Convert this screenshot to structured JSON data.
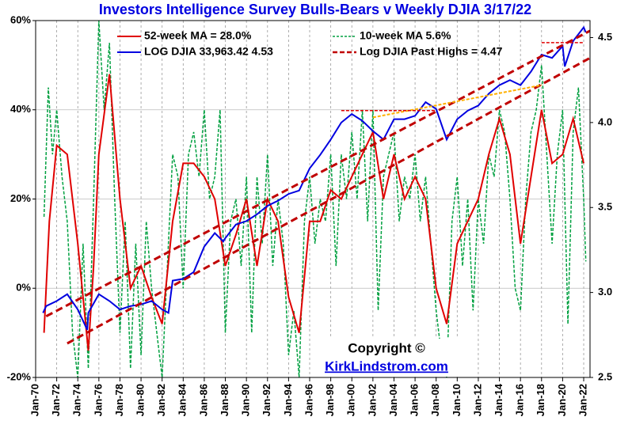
{
  "chart_data": {
    "type": "line",
    "title": "Investors Intelligence Survey Bulls-Bears v Weekly DJIA 3/17/22",
    "annotations": [
      "Copyright ©",
      "KirkLindstrom.com"
    ],
    "xlim": [
      1970,
      2022.6
    ],
    "xticks": [
      {
        "value": 1970,
        "label": "Jan-70"
      },
      {
        "value": 1972,
        "label": "Jan-72"
      },
      {
        "value": 1974,
        "label": "Jan-74"
      },
      {
        "value": 1976,
        "label": "Jan-76"
      },
      {
        "value": 1978,
        "label": "Jan-78"
      },
      {
        "value": 1980,
        "label": "Jan-80"
      },
      {
        "value": 1982,
        "label": "Jan-82"
      },
      {
        "value": 1984,
        "label": "Jan-84"
      },
      {
        "value": 1986,
        "label": "Jan-86"
      },
      {
        "value": 1988,
        "label": "Jan-88"
      },
      {
        "value": 1990,
        "label": "Jan-90"
      },
      {
        "value": 1992,
        "label": "Jan-92"
      },
      {
        "value": 1994,
        "label": "Jan-94"
      },
      {
        "value": 1996,
        "label": "Jan-96"
      },
      {
        "value": 1998,
        "label": "Jan-98"
      },
      {
        "value": 2000,
        "label": "Jan-00"
      },
      {
        "value": 2002,
        "label": "Jan-02"
      },
      {
        "value": 2004,
        "label": "Jan-04"
      },
      {
        "value": 2006,
        "label": "Jan-06"
      },
      {
        "value": 2008,
        "label": "Jan-08"
      },
      {
        "value": 2010,
        "label": "Jan-10"
      },
      {
        "value": 2012,
        "label": "Jan-12"
      },
      {
        "value": 2014,
        "label": "Jan-14"
      },
      {
        "value": 2016,
        "label": "Jan-16"
      },
      {
        "value": 2018,
        "label": "Jan-18"
      },
      {
        "value": 2020,
        "label": "Jan-20"
      },
      {
        "value": 2022,
        "label": "Jan-22"
      }
    ],
    "ylim": [
      -20,
      60
    ],
    "yticks": [
      {
        "value": -20,
        "label": "-20%"
      },
      {
        "value": 0,
        "label": "0%"
      },
      {
        "value": 20,
        "label": "20%"
      },
      {
        "value": 40,
        "label": "40%"
      },
      {
        "value": 60,
        "label": "60%"
      }
    ],
    "y2lim": [
      2.5,
      4.6
    ],
    "y2ticks": [
      2.5,
      {
        "value": 3,
        "label": "3.0"
      },
      3.5,
      {
        "value": 4,
        "label": "4.0"
      },
      4.5
    ],
    "grid": true,
    "series": [
      {
        "name": "52-week MA = 28.0%",
        "color": "#e00000",
        "dash": false,
        "width": 2,
        "x": [
          1970.8,
          1971.3,
          1972,
          1973,
          1974,
          1975,
          1975.5,
          1976,
          1977,
          1978,
          1979,
          1980,
          1981,
          1982,
          1983,
          1984,
          1985,
          1986,
          1987,
          1988,
          1989,
          1990,
          1991,
          1992,
          1993,
          1994,
          1995,
          1996,
          1997,
          1998,
          1999,
          2000,
          2001,
          2002,
          2003,
          2004,
          2005,
          2006,
          2007,
          2008,
          2009,
          2010,
          2011,
          2012,
          2013,
          2014,
          2015,
          2016,
          2017,
          2018,
          2019,
          2020,
          2021,
          2022
        ],
        "values": [
          -10,
          15,
          32,
          30,
          10,
          -14,
          5,
          30,
          48,
          20,
          0,
          5,
          -2,
          -8,
          15,
          28,
          28,
          25,
          20,
          5,
          12,
          20,
          5,
          20,
          15,
          -2,
          -10,
          15,
          15,
          22,
          20,
          25,
          30,
          35,
          20,
          30,
          20,
          25,
          20,
          0,
          -8,
          10,
          15,
          20,
          30,
          38,
          30,
          10,
          25,
          40,
          28,
          30,
          38,
          28
        ]
      },
      {
        "name": "10-week MA 5.6%",
        "color": "#00a040",
        "dash": true,
        "width": 1.5,
        "x": [
          1970.8,
          1971.2,
          1971.6,
          1972,
          1972.5,
          1973,
          1973.5,
          1974,
          1974.5,
          1975,
          1975.5,
          1976,
          1976.5,
          1977,
          1977.5,
          1978,
          1978.5,
          1979,
          1979.5,
          1980,
          1980.5,
          1981,
          1981.5,
          1982,
          1982.5,
          1983,
          1983.5,
          1984,
          1984.5,
          1985,
          1985.5,
          1986,
          1986.5,
          1987,
          1987.5,
          1988,
          1988.5,
          1989,
          1989.5,
          1990,
          1990.5,
          1991,
          1991.5,
          1992,
          1992.5,
          1993,
          1993.5,
          1994,
          1994.5,
          1995,
          1995.5,
          1996,
          1996.5,
          1997,
          1997.5,
          1998,
          1998.5,
          1999,
          1999.5,
          2000,
          2000.5,
          2001,
          2001.5,
          2002,
          2002.5,
          2003,
          2003.5,
          2004,
          2004.5,
          2005,
          2005.5,
          2006,
          2006.5,
          2007,
          2007.5,
          2008,
          2008.5,
          2009,
          2009.5,
          2010,
          2010.5,
          2011,
          2011.5,
          2012,
          2012.5,
          2013,
          2013.5,
          2014,
          2014.5,
          2015,
          2015.5,
          2016,
          2016.5,
          2017,
          2017.5,
          2018,
          2018.5,
          2019,
          2019.5,
          2020,
          2020.5,
          2021,
          2021.5,
          2022,
          2022.2
        ],
        "values": [
          16,
          45,
          30,
          40,
          25,
          15,
          -10,
          -20,
          10,
          -18,
          20,
          60,
          40,
          55,
          20,
          -10,
          15,
          -18,
          10,
          -15,
          15,
          0,
          -10,
          -20,
          5,
          30,
          25,
          0,
          30,
          35,
          25,
          40,
          20,
          25,
          40,
          -10,
          15,
          20,
          5,
          25,
          -10,
          25,
          10,
          30,
          5,
          20,
          10,
          -15,
          -5,
          -20,
          15,
          25,
          10,
          20,
          15,
          30,
          5,
          30,
          20,
          35,
          20,
          40,
          15,
          40,
          -5,
          25,
          30,
          35,
          15,
          25,
          20,
          30,
          15,
          25,
          10,
          -5,
          -15,
          -20,
          15,
          25,
          5,
          20,
          -5,
          20,
          10,
          30,
          25,
          40,
          35,
          20,
          0,
          -5,
          20,
          35,
          40,
          50,
          30,
          10,
          30,
          40,
          -8,
          35,
          45,
          20,
          6
        ]
      },
      {
        "name": "LOG DJIA  33,963.42  4.53",
        "color": "#0000e0",
        "dash": false,
        "width": 2,
        "axis": "y2",
        "x": [
          1970.7,
          1971,
          1972,
          1973,
          1974,
          1974.9,
          1975,
          1976,
          1977,
          1978,
          1979,
          1980,
          1981,
          1982,
          1982.6,
          1983,
          1984,
          1985,
          1986,
          1987,
          1987.8,
          1988,
          1989,
          1990,
          1991,
          1992,
          1993,
          1994,
          1995,
          1996,
          1997,
          1998,
          1999,
          2000,
          2001,
          2002,
          2003,
          2004,
          2005,
          2006,
          2007,
          2008,
          2009,
          2010,
          2011,
          2012,
          2013,
          2014,
          2015,
          2016,
          2017,
          2018,
          2019,
          2020,
          2020.2,
          2021,
          2022,
          2022.2
        ],
        "values": [
          2.88,
          2.92,
          2.95,
          2.99,
          2.9,
          2.78,
          2.88,
          2.99,
          2.95,
          2.9,
          2.92,
          2.93,
          2.95,
          2.9,
          2.88,
          3.07,
          3.08,
          3.12,
          3.27,
          3.35,
          3.3,
          3.32,
          3.4,
          3.42,
          3.46,
          3.51,
          3.54,
          3.58,
          3.6,
          3.73,
          3.81,
          3.9,
          4.0,
          4.05,
          4.01,
          3.95,
          3.9,
          4.02,
          4.02,
          4.04,
          4.12,
          4.08,
          3.9,
          4.02,
          4.07,
          4.1,
          4.17,
          4.22,
          4.25,
          4.22,
          4.3,
          4.4,
          4.38,
          4.45,
          4.33,
          4.48,
          4.56,
          4.53
        ]
      },
      {
        "name": "Log DJIA Past Highs =  4.47",
        "color": "#c00000",
        "dash": true,
        "width": 3,
        "axis": "y2",
        "x": [
          1971,
          2022.6
        ],
        "values": [
          2.86,
          4.54
        ]
      },
      {
        "color": "#c00000",
        "dash": true,
        "width": 3,
        "axis": "y2",
        "x": [
          1973,
          2022.6
        ],
        "values": [
          2.7,
          4.38
        ]
      },
      {
        "color": "#ffb000",
        "dash": true,
        "width": 2,
        "axis": "y2",
        "x": [
          2002,
          2018
        ],
        "values": [
          4.03,
          4.22
        ]
      },
      {
        "color": "#e00000",
        "dash": true,
        "width": 1.5,
        "axis": "y2",
        "x": [
          1999,
          2008
        ],
        "values": [
          4.07,
          4.07
        ]
      },
      {
        "color": "#e00000",
        "dash": true,
        "width": 1.5,
        "axis": "y2",
        "x": [
          2018,
          2022
        ],
        "values": [
          4.47,
          4.47
        ]
      }
    ]
  }
}
